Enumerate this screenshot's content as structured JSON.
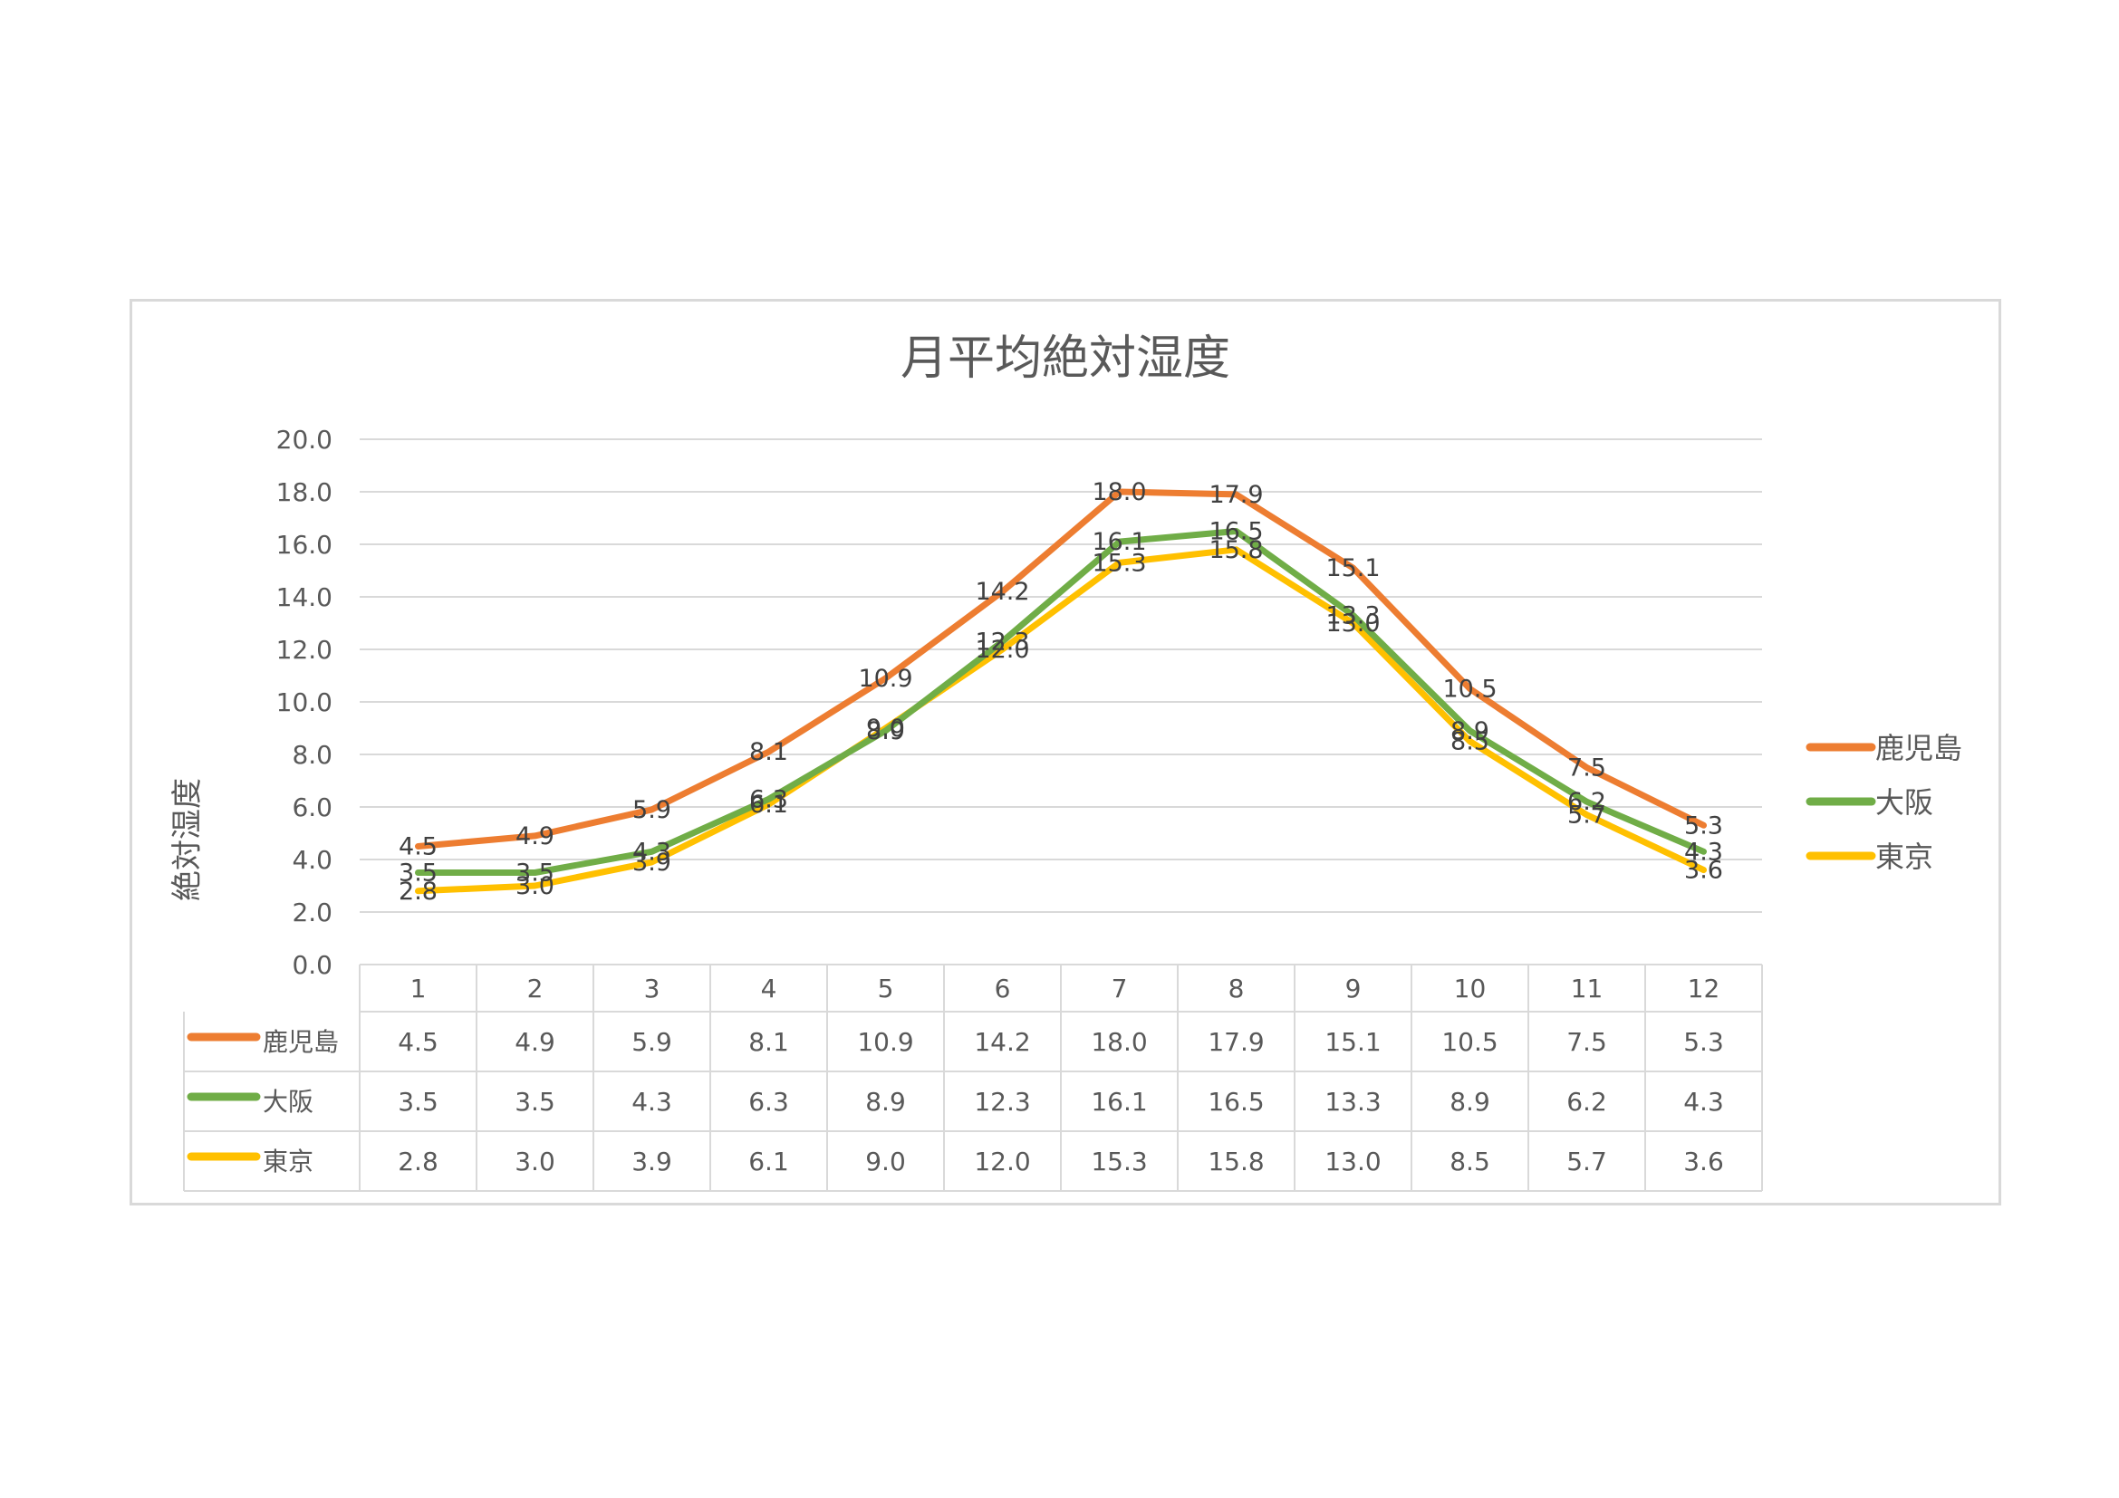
{
  "chart_data": {
    "type": "line",
    "title": "月平均絶対湿度",
    "ylabel": "絶対湿度",
    "xlabel": "",
    "ylim": [
      0,
      20
    ],
    "yticks": [
      "0.0",
      "2.0",
      "4.0",
      "6.0",
      "8.0",
      "10.0",
      "12.0",
      "14.0",
      "16.0",
      "18.0",
      "20.0"
    ],
    "categories": [
      "1",
      "2",
      "3",
      "4",
      "5",
      "6",
      "7",
      "8",
      "9",
      "10",
      "11",
      "12"
    ],
    "grid": true,
    "legend_position": "right",
    "data_table": true,
    "series": [
      {
        "name": "鹿児島",
        "color": "#ed7d31",
        "values": [
          4.5,
          4.9,
          5.9,
          8.1,
          10.9,
          14.2,
          18.0,
          17.9,
          15.1,
          10.5,
          7.5,
          5.3
        ],
        "labels": [
          "4.5",
          "4.9",
          "5.9",
          "8.1",
          "10.9",
          "14.2",
          "18.0",
          "17.9",
          "15.1",
          "10.5",
          "7.5",
          "5.3"
        ]
      },
      {
        "name": "大阪",
        "color": "#70ad47",
        "values": [
          3.5,
          3.5,
          4.3,
          6.3,
          8.9,
          12.3,
          16.1,
          16.5,
          13.3,
          8.9,
          6.2,
          4.3
        ],
        "labels": [
          "3.5",
          "3.5",
          "4.3",
          "6.3",
          "8.9",
          "12.3",
          "16.1",
          "16.5",
          "13.3",
          "8.9",
          "6.2",
          "4.3"
        ]
      },
      {
        "name": "東京",
        "color": "#ffc000",
        "values": [
          2.8,
          3.0,
          3.9,
          6.1,
          9.0,
          12.0,
          15.3,
          15.8,
          13.0,
          8.5,
          5.7,
          3.6
        ],
        "labels": [
          "2.8",
          "3.0",
          "3.9",
          "6.1",
          "9.0",
          "12.0",
          "15.3",
          "15.8",
          "13.0",
          "8.5",
          "5.7",
          "3.6"
        ]
      }
    ]
  }
}
